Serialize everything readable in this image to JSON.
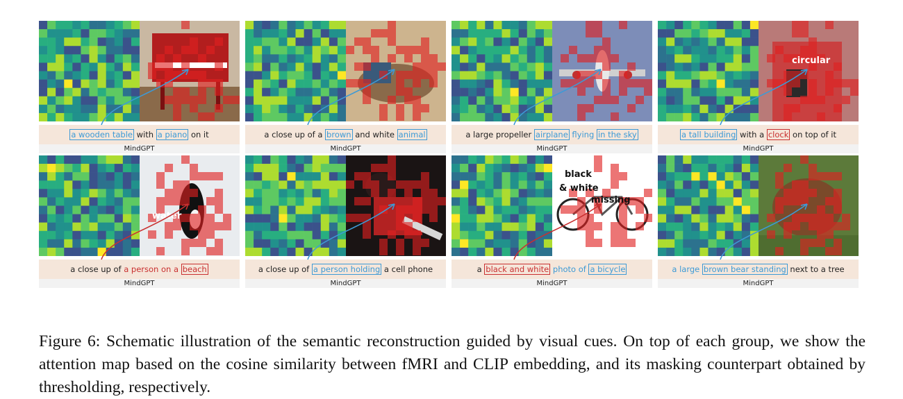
{
  "model_label": "MindGPT",
  "caption": "Figure 6: Schematic illustration of the semantic reconstruction guided by visual cues. On top of each group, we show the attention map based on the cosine similarity between fMRI and CLIP embedding, and its masking counterpart obtained by thresholding, respectively.",
  "colors": {
    "cue_blue": "#3d9ad6",
    "cue_red": "#c93030",
    "caption_band": "#f5e6da",
    "model_band": "#f2f2f2",
    "mask_red": "#e02020"
  },
  "panels": [
    {
      "photo_subject": "piano",
      "segments": [
        {
          "t": "a wooden table",
          "c": "blue",
          "box": true
        },
        {
          "t": " with ",
          "c": "plain"
        },
        {
          "t": "a piano",
          "c": "blue",
          "box": true
        },
        {
          "t": " on it",
          "c": "plain"
        }
      ],
      "annotations": []
    },
    {
      "photo_subject": "animal",
      "segments": [
        {
          "t": "a close up of a ",
          "c": "plain"
        },
        {
          "t": "brown",
          "c": "blue",
          "box": true
        },
        {
          "t": " and white ",
          "c": "plain"
        },
        {
          "t": "animal",
          "c": "blue",
          "box": true
        }
      ],
      "annotations": []
    },
    {
      "photo_subject": "airplane",
      "segments": [
        {
          "t": "a large propeller ",
          "c": "plain"
        },
        {
          "t": "airplane",
          "c": "blue",
          "box": true
        },
        {
          "t": " flying ",
          "c": "blue"
        },
        {
          "t": "in the sky",
          "c": "blue",
          "box": true
        }
      ],
      "annotations": []
    },
    {
      "photo_subject": "building",
      "segments": [
        {
          "t": "a tall building",
          "c": "blue",
          "box": true
        },
        {
          "t": " with a ",
          "c": "plain"
        },
        {
          "t": "clock",
          "c": "red",
          "box": true
        },
        {
          "t": " on top of it",
          "c": "plain"
        }
      ],
      "annotations": [
        {
          "t": "circular"
        }
      ]
    },
    {
      "photo_subject": "orca",
      "segments": [
        {
          "t": "a close up of ",
          "c": "plain"
        },
        {
          "t": "a person on a ",
          "c": "red"
        },
        {
          "t": "beach",
          "c": "red",
          "box": true
        }
      ],
      "annotations": [
        {
          "t": "water"
        }
      ]
    },
    {
      "photo_subject": "person",
      "segments": [
        {
          "t": "a close up of ",
          "c": "plain"
        },
        {
          "t": "a person holding",
          "c": "blue",
          "box": true
        },
        {
          "t": " a cell phone",
          "c": "plain"
        }
      ],
      "annotations": []
    },
    {
      "photo_subject": "bicycle",
      "segments": [
        {
          "t": "a ",
          "c": "plain"
        },
        {
          "t": "black and white",
          "c": "red",
          "box": true
        },
        {
          "t": " photo of ",
          "c": "blue"
        },
        {
          "t": "a bicycle",
          "c": "blue",
          "box": true
        }
      ],
      "annotations": [
        {
          "t": "black"
        },
        {
          "t": "& white"
        },
        {
          "t": "missing"
        }
      ]
    },
    {
      "photo_subject": "bear",
      "segments": [
        {
          "t": "a large ",
          "c": "blue"
        },
        {
          "t": "brown bear standing",
          "c": "blue",
          "box": true
        },
        {
          "t": " next to a tree",
          "c": "plain"
        }
      ],
      "annotations": []
    }
  ]
}
